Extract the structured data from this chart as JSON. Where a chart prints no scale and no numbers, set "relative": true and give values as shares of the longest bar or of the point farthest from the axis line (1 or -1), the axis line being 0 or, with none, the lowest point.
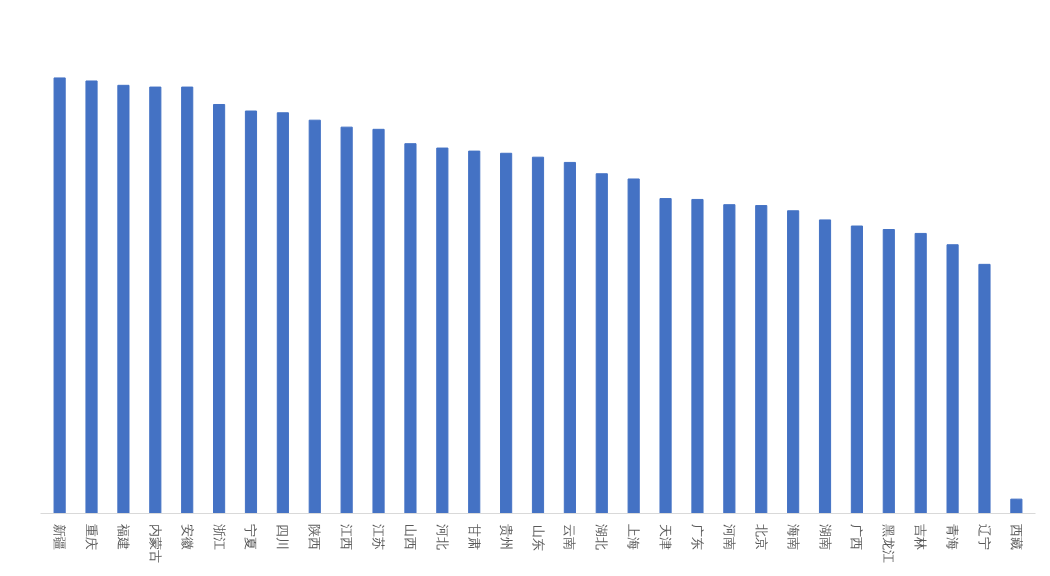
{
  "chart_data": {
    "type": "bar",
    "relative": true,
    "color": "#4472c4",
    "categories": [
      "新疆",
      "重庆",
      "福建",
      "内蒙古",
      "安徽",
      "浙江",
      "宁夏",
      "四川",
      "陕西",
      "江西",
      "江苏",
      "山西",
      "河北",
      "甘肃",
      "贵州",
      "山东",
      "云南",
      "湖北",
      "上海",
      "天津",
      "广东",
      "河南",
      "北京",
      "海南",
      "湖南",
      "广西",
      "黑龙江",
      "吉林",
      "青海",
      "辽宁",
      "西藏"
    ],
    "values": [
      1,
      0.993,
      0.983,
      0.979,
      0.979,
      0.939,
      0.924,
      0.92,
      0.903,
      0.887,
      0.882,
      0.849,
      0.839,
      0.832,
      0.827,
      0.818,
      0.806,
      0.78,
      0.768,
      0.723,
      0.721,
      0.709,
      0.707,
      0.695,
      0.674,
      0.66,
      0.652,
      0.643,
      0.617,
      0.572,
      0.033
    ]
  }
}
